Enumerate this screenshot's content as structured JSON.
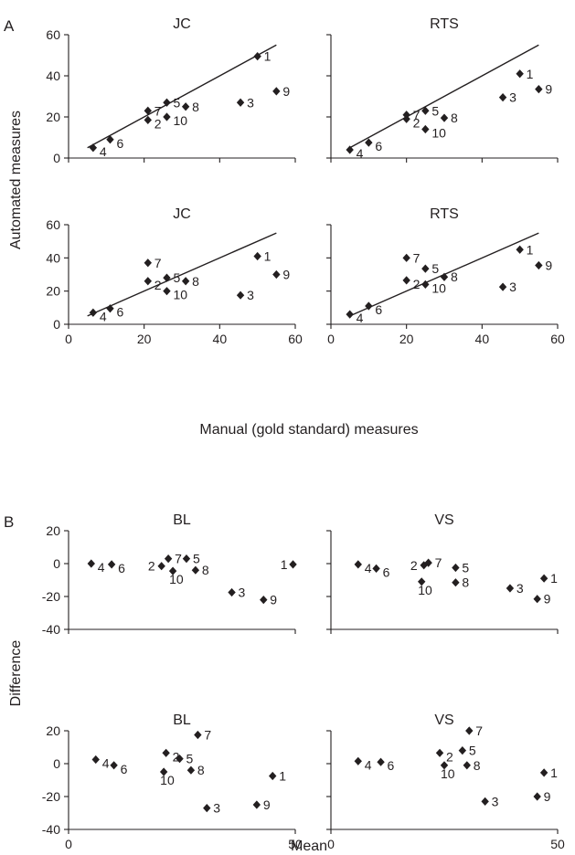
{
  "figure": {
    "section_a_label": "A",
    "section_b_label": "B",
    "section_a_xlabel": "Manual (gold standard) measures",
    "section_a_ylabel": "Automated measures",
    "section_b_xlabel": "Mean",
    "section_b_ylabel": "Difference"
  },
  "chart_data": [
    {
      "type": "scatter",
      "title": "JC",
      "section": "A",
      "xlim": [
        0,
        60
      ],
      "ylim": [
        0,
        60
      ],
      "xticks": [],
      "yticks": [
        0,
        20,
        40,
        60
      ],
      "identity_line": [
        [
          5,
          5
        ],
        [
          55,
          55
        ]
      ],
      "points": [
        {
          "label": "1",
          "x": 50,
          "y": 49.5
        },
        {
          "label": "2",
          "x": 21,
          "y": 18.5
        },
        {
          "label": "3",
          "x": 45.5,
          "y": 27
        },
        {
          "label": "4",
          "x": 6.5,
          "y": 5
        },
        {
          "label": "5",
          "x": 26,
          "y": 27
        },
        {
          "label": "6",
          "x": 11,
          "y": 9
        },
        {
          "label": "7",
          "x": 21,
          "y": 23
        },
        {
          "label": "8",
          "x": 31,
          "y": 25
        },
        {
          "label": "9",
          "x": 55,
          "y": 32.5
        },
        {
          "label": "10",
          "x": 26,
          "y": 20
        }
      ]
    },
    {
      "type": "scatter",
      "title": "RTS",
      "section": "A",
      "xlim": [
        0,
        60
      ],
      "ylim": [
        0,
        60
      ],
      "xticks": [],
      "yticks": [],
      "identity_line": [
        [
          5,
          5
        ],
        [
          55,
          55
        ]
      ],
      "points": [
        {
          "label": "1",
          "x": 50,
          "y": 41
        },
        {
          "label": "2",
          "x": 20,
          "y": 19
        },
        {
          "label": "3",
          "x": 45.5,
          "y": 29.5
        },
        {
          "label": "4",
          "x": 5,
          "y": 4
        },
        {
          "label": "5",
          "x": 25,
          "y": 23
        },
        {
          "label": "6",
          "x": 10,
          "y": 7.5
        },
        {
          "label": "7",
          "x": 20,
          "y": 21
        },
        {
          "label": "8",
          "x": 30,
          "y": 19.5
        },
        {
          "label": "9",
          "x": 55,
          "y": 33.5
        },
        {
          "label": "10",
          "x": 25,
          "y": 14
        }
      ]
    },
    {
      "type": "scatter",
      "title": "JC",
      "section": "A",
      "xlim": [
        0,
        60
      ],
      "ylim": [
        0,
        60
      ],
      "xticks": [
        0,
        20,
        40,
        60
      ],
      "yticks": [
        0,
        20,
        40,
        60
      ],
      "identity_line": [
        [
          5,
          5
        ],
        [
          55,
          55
        ]
      ],
      "points": [
        {
          "label": "1",
          "x": 50,
          "y": 41
        },
        {
          "label": "2",
          "x": 21,
          "y": 26
        },
        {
          "label": "3",
          "x": 45.5,
          "y": 17.5
        },
        {
          "label": "4",
          "x": 6.5,
          "y": 7
        },
        {
          "label": "5",
          "x": 26,
          "y": 28
        },
        {
          "label": "6",
          "x": 11,
          "y": 9.5
        },
        {
          "label": "7",
          "x": 21,
          "y": 37
        },
        {
          "label": "8",
          "x": 31,
          "y": 26
        },
        {
          "label": "9",
          "x": 55,
          "y": 30
        },
        {
          "label": "10",
          "x": 26,
          "y": 20
        }
      ]
    },
    {
      "type": "scatter",
      "title": "RTS",
      "section": "A",
      "xlim": [
        0,
        60
      ],
      "ylim": [
        0,
        60
      ],
      "xticks": [
        0,
        20,
        40,
        60
      ],
      "yticks": [],
      "identity_line": [
        [
          5,
          5
        ],
        [
          55,
          55
        ]
      ],
      "points": [
        {
          "label": "1",
          "x": 50,
          "y": 45
        },
        {
          "label": "2",
          "x": 20,
          "y": 26.5
        },
        {
          "label": "3",
          "x": 45.5,
          "y": 22.5
        },
        {
          "label": "4",
          "x": 5,
          "y": 6
        },
        {
          "label": "5",
          "x": 25,
          "y": 33.5
        },
        {
          "label": "6",
          "x": 10,
          "y": 11
        },
        {
          "label": "7",
          "x": 20,
          "y": 40
        },
        {
          "label": "8",
          "x": 30,
          "y": 28.5
        },
        {
          "label": "9",
          "x": 55,
          "y": 35.5
        },
        {
          "label": "10",
          "x": 25,
          "y": 24
        }
      ]
    },
    {
      "type": "scatter",
      "title": "BL",
      "section": "B",
      "xlim": [
        0,
        50
      ],
      "ylim": [
        -40,
        20
      ],
      "xticks": [],
      "yticks": [
        -40,
        -20,
        0,
        20
      ],
      "points": [
        {
          "label": "1",
          "x": 49.5,
          "y": -0.5
        },
        {
          "label": "2",
          "x": 20.5,
          "y": -1.5
        },
        {
          "label": "3",
          "x": 36,
          "y": -17.5
        },
        {
          "label": "4",
          "x": 5,
          "y": 0
        },
        {
          "label": "5",
          "x": 26,
          "y": 3
        },
        {
          "label": "6",
          "x": 9.5,
          "y": -0.5
        },
        {
          "label": "7",
          "x": 22,
          "y": 3
        },
        {
          "label": "8",
          "x": 28,
          "y": -4
        },
        {
          "label": "9",
          "x": 43,
          "y": -22
        },
        {
          "label": "10",
          "x": 23,
          "y": -4.5
        }
      ]
    },
    {
      "type": "scatter",
      "title": "VS",
      "section": "B",
      "xlim": [
        0,
        50
      ],
      "ylim": [
        -40,
        20
      ],
      "xticks": [],
      "yticks": [],
      "points": [
        {
          "label": "1",
          "x": 47,
          "y": -9
        },
        {
          "label": "2",
          "x": 20.5,
          "y": -1
        },
        {
          "label": "3",
          "x": 39.5,
          "y": -15
        },
        {
          "label": "4",
          "x": 6,
          "y": -0.5
        },
        {
          "label": "5",
          "x": 27.5,
          "y": -2.5
        },
        {
          "label": "6",
          "x": 10,
          "y": -3
        },
        {
          "label": "7",
          "x": 21.5,
          "y": 0.5
        },
        {
          "label": "8",
          "x": 27.5,
          "y": -11.5
        },
        {
          "label": "9",
          "x": 45.5,
          "y": -21.5
        },
        {
          "label": "10",
          "x": 20,
          "y": -11
        }
      ]
    },
    {
      "type": "scatter",
      "title": "BL",
      "section": "B",
      "xlim": [
        0,
        50
      ],
      "ylim": [
        -40,
        20
      ],
      "xticks": [
        0,
        50
      ],
      "yticks": [
        -40,
        -20,
        0,
        20
      ],
      "points": [
        {
          "label": "1",
          "x": 45,
          "y": -7.5
        },
        {
          "label": "2",
          "x": 21.5,
          "y": 6.5
        },
        {
          "label": "3",
          "x": 30.5,
          "y": -27
        },
        {
          "label": "4",
          "x": 6,
          "y": 2.5
        },
        {
          "label": "5",
          "x": 24.5,
          "y": 3
        },
        {
          "label": "6",
          "x": 10,
          "y": -1
        },
        {
          "label": "7",
          "x": 28.5,
          "y": 17.5
        },
        {
          "label": "8",
          "x": 27,
          "y": -4
        },
        {
          "label": "9",
          "x": 41.5,
          "y": -25
        },
        {
          "label": "10",
          "x": 21,
          "y": -5
        }
      ]
    },
    {
      "type": "scatter",
      "title": "VS",
      "section": "B",
      "xlim": [
        0,
        50
      ],
      "ylim": [
        -40,
        20
      ],
      "xticks": [
        0,
        50
      ],
      "yticks": [],
      "points": [
        {
          "label": "1",
          "x": 47,
          "y": -5.5
        },
        {
          "label": "2",
          "x": 24,
          "y": 6.5
        },
        {
          "label": "3",
          "x": 34,
          "y": -23
        },
        {
          "label": "4",
          "x": 6,
          "y": 1.5
        },
        {
          "label": "5",
          "x": 29,
          "y": 8
        },
        {
          "label": "6",
          "x": 11,
          "y": 1
        },
        {
          "label": "7",
          "x": 30.5,
          "y": 20
        },
        {
          "label": "8",
          "x": 30,
          "y": -1
        },
        {
          "label": "9",
          "x": 45.5,
          "y": -20
        },
        {
          "label": "10",
          "x": 25,
          "y": -1
        }
      ]
    }
  ]
}
